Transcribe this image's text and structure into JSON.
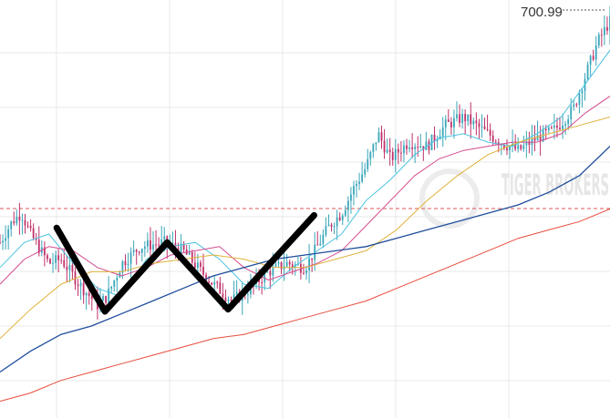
{
  "chart_data": {
    "type": "candlestick",
    "x_range": [
      0,
      1
    ],
    "ylim": [
      0,
      1
    ],
    "grid": true,
    "watermark": "TIGER BROKERS",
    "high_marker": {
      "label": "700.99",
      "value": 0.985
    },
    "resistance_line": {
      "value": 0.495,
      "color": "#e05555"
    },
    "colors": {
      "up": "#3aa6b9",
      "down": "#c0306a",
      "ma_short": "#4cc3e0",
      "ma_mid": "#d34b8f",
      "ma_long": "#e0b23a",
      "ma_120": "#1f4e9c",
      "ma_250": "#e94b3c",
      "pattern": "#000000"
    },
    "ma_series": [
      {
        "key": "ma_short",
        "x": [
          0,
          0.04,
          0.08,
          0.12,
          0.16,
          0.2,
          0.24,
          0.28,
          0.32,
          0.36,
          0.4,
          0.44,
          0.48,
          0.52,
          0.56,
          0.6,
          0.64,
          0.68,
          0.72,
          0.76,
          0.8,
          0.84,
          0.88,
          0.92,
          0.96,
          1.0
        ],
        "y": [
          0.36,
          0.42,
          0.44,
          0.37,
          0.31,
          0.29,
          0.38,
          0.41,
          0.42,
          0.38,
          0.32,
          0.31,
          0.36,
          0.4,
          0.44,
          0.52,
          0.57,
          0.63,
          0.67,
          0.68,
          0.66,
          0.65,
          0.68,
          0.72,
          0.8,
          0.88
        ]
      },
      {
        "key": "ma_mid",
        "x": [
          0,
          0.04,
          0.08,
          0.12,
          0.16,
          0.2,
          0.24,
          0.28,
          0.32,
          0.36,
          0.4,
          0.44,
          0.48,
          0.52,
          0.56,
          0.6,
          0.64,
          0.68,
          0.72,
          0.76,
          0.8,
          0.84,
          0.88,
          0.92,
          0.96,
          1.0
        ],
        "y": [
          0.32,
          0.38,
          0.41,
          0.4,
          0.36,
          0.34,
          0.36,
          0.39,
          0.4,
          0.41,
          0.36,
          0.33,
          0.35,
          0.37,
          0.4,
          0.46,
          0.52,
          0.58,
          0.62,
          0.64,
          0.65,
          0.66,
          0.66,
          0.68,
          0.73,
          0.77
        ]
      },
      {
        "key": "ma_long",
        "x": [
          0,
          0.05,
          0.1,
          0.15,
          0.2,
          0.25,
          0.3,
          0.35,
          0.4,
          0.45,
          0.5,
          0.55,
          0.6,
          0.65,
          0.7,
          0.75,
          0.8,
          0.85,
          0.9,
          0.95,
          1.0
        ],
        "y": [
          0.19,
          0.26,
          0.32,
          0.35,
          0.35,
          0.37,
          0.38,
          0.39,
          0.38,
          0.36,
          0.36,
          0.38,
          0.4,
          0.45,
          0.52,
          0.58,
          0.63,
          0.66,
          0.68,
          0.7,
          0.72
        ]
      },
      {
        "key": "ma_120",
        "x": [
          0,
          0.05,
          0.1,
          0.15,
          0.2,
          0.25,
          0.3,
          0.35,
          0.4,
          0.45,
          0.5,
          0.55,
          0.6,
          0.65,
          0.7,
          0.75,
          0.8,
          0.85,
          0.9,
          0.95,
          1.0
        ],
        "y": [
          0.11,
          0.16,
          0.2,
          0.22,
          0.25,
          0.28,
          0.31,
          0.34,
          0.36,
          0.38,
          0.39,
          0.4,
          0.41,
          0.43,
          0.45,
          0.47,
          0.49,
          0.51,
          0.54,
          0.58,
          0.65
        ]
      },
      {
        "key": "ma_250",
        "x": [
          0,
          0.05,
          0.1,
          0.15,
          0.2,
          0.25,
          0.3,
          0.35,
          0.4,
          0.45,
          0.5,
          0.55,
          0.6,
          0.65,
          0.7,
          0.75,
          0.8,
          0.85,
          0.9,
          0.95,
          1.0
        ],
        "y": [
          0.04,
          0.06,
          0.09,
          0.11,
          0.13,
          0.15,
          0.17,
          0.19,
          0.2,
          0.22,
          0.24,
          0.26,
          0.28,
          0.31,
          0.34,
          0.37,
          0.4,
          0.43,
          0.45,
          0.47,
          0.5
        ]
      }
    ],
    "pattern_w": {
      "x": [
        0.093,
        0.172,
        0.274,
        0.374,
        0.515
      ],
      "y": [
        0.455,
        0.255,
        0.42,
        0.26,
        0.485
      ]
    },
    "price_path": {
      "x": [
        0,
        0.02,
        0.035,
        0.05,
        0.08,
        0.1,
        0.13,
        0.16,
        0.175,
        0.2,
        0.23,
        0.27,
        0.3,
        0.33,
        0.35,
        0.38,
        0.41,
        0.44,
        0.47,
        0.5,
        0.52,
        0.54,
        0.56,
        0.58,
        0.6,
        0.62,
        0.64,
        0.67,
        0.7,
        0.73,
        0.76,
        0.79,
        0.82,
        0.85,
        0.88,
        0.91,
        0.94,
        0.96,
        0.98,
        1.0
      ],
      "y": [
        0.42,
        0.47,
        0.49,
        0.44,
        0.37,
        0.38,
        0.32,
        0.27,
        0.29,
        0.37,
        0.41,
        0.42,
        0.4,
        0.35,
        0.32,
        0.28,
        0.31,
        0.35,
        0.37,
        0.36,
        0.41,
        0.46,
        0.49,
        0.55,
        0.6,
        0.68,
        0.62,
        0.66,
        0.65,
        0.7,
        0.72,
        0.69,
        0.66,
        0.64,
        0.67,
        0.69,
        0.74,
        0.82,
        0.9,
        0.95
      ]
    }
  }
}
